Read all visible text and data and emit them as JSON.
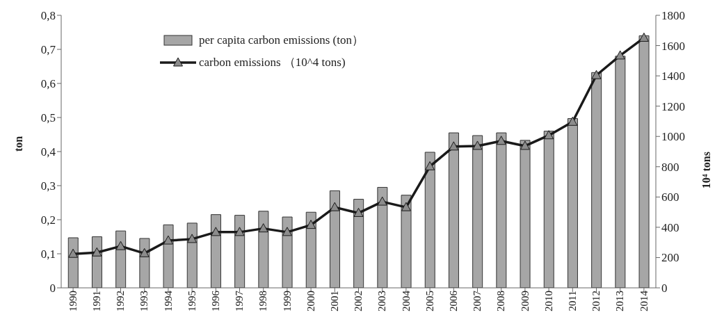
{
  "chart_data": {
    "type": "bar",
    "categories": [
      "1990",
      "1991",
      "1992",
      "1993",
      "1994",
      "1995",
      "1996",
      "1997",
      "1998",
      "1999",
      "2000",
      "2001",
      "2002",
      "2003",
      "2004",
      "2005",
      "2006",
      "2007",
      "2008",
      "2009",
      "2010",
      "2011",
      "2012",
      "2013",
      "2014"
    ],
    "ylabel": "ton",
    "y2label": "10⁴ tons",
    "series": [
      {
        "name": "per capita carbon emissions (ton）",
        "color": "#a6a6a6",
        "values": [
          0.147,
          0.15,
          0.167,
          0.145,
          0.185,
          0.19,
          0.215,
          0.213,
          0.225,
          0.208,
          0.222,
          0.285,
          0.26,
          0.295,
          0.272,
          0.398,
          0.455,
          0.447,
          0.455,
          0.433,
          0.46,
          0.497,
          0.632,
          0.68,
          0.74
        ]
      },
      {
        "name": "carbon emissions （10^4 tons)",
        "type": "line",
        "axis": "y2",
        "color": "#1a1a1a",
        "marker": "triangle",
        "values": [
          224,
          233,
          275,
          228,
          312,
          322,
          368,
          368,
          392,
          368,
          415,
          532,
          494,
          569,
          532,
          802,
          933,
          937,
          970,
          937,
          1007,
          1096,
          1404,
          1534,
          1651
        ]
      }
    ],
    "ylim": [
      0,
      0.8
    ],
    "yticks": [
      0,
      {
        "value": 0.1,
        "label": "0,1"
      },
      {
        "value": 0.2,
        "label": "0,2"
      },
      {
        "value": 0.3,
        "label": "0,3"
      },
      {
        "value": 0.4,
        "label": "0,4"
      },
      {
        "value": 0.5,
        "label": "0,5"
      },
      {
        "value": 0.6,
        "label": "0,6"
      },
      {
        "value": 0.7,
        "label": "0,7"
      },
      {
        "value": 0.8,
        "label": "0,8"
      }
    ],
    "y2lim": [
      0,
      1800
    ],
    "y2ticks": [
      0,
      200,
      400,
      600,
      800,
      1000,
      1200,
      1400,
      1600,
      1800
    ],
    "grid": false,
    "legend": "top"
  }
}
